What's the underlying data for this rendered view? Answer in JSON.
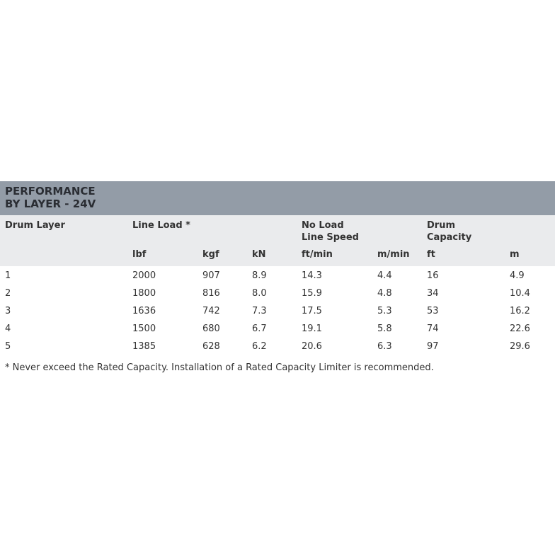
{
  "title": [
    "PERFORMANCE",
    "BY LAYER - 24V"
  ],
  "headers": {
    "drum_layer": "Drum Layer",
    "line_load": "Line Load *",
    "no_load_1": "No Load",
    "no_load_2": "Line Speed",
    "drum_cap_1": "Drum",
    "drum_cap_2": "Capacity"
  },
  "units": [
    "lbf",
    "kgf",
    "kN",
    "ft/min",
    "m/min",
    "ft",
    "m"
  ],
  "rows": [
    [
      "1",
      "2000",
      "907",
      "8.9",
      "14.3",
      "4.4",
      "16",
      "4.9"
    ],
    [
      "2",
      "1800",
      "816",
      "8.0",
      "15.9",
      "4.8",
      "34",
      "10.4"
    ],
    [
      "3",
      "1636",
      "742",
      "7.3",
      "17.5",
      "5.3",
      "53",
      "16.2"
    ],
    [
      "4",
      "1500",
      "680",
      "6.7",
      "19.1",
      "5.8",
      "74",
      "22.6"
    ],
    [
      "5",
      "1385",
      "628",
      "6.2",
      "20.6",
      "6.3",
      "97",
      "29.6"
    ]
  ],
  "footnote": "* Never exceed the Rated Capacity. Installation of a Rated Capacity Limiter is recommended."
}
